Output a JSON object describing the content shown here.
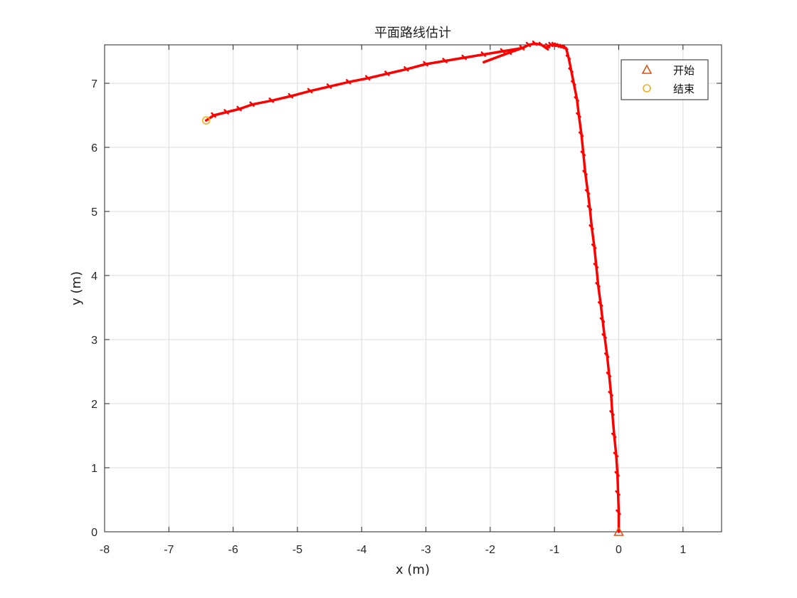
{
  "chart_data": {
    "type": "line",
    "title": "平面路线估计",
    "xlabel": "x (m)",
    "ylabel": "y (m)",
    "xlim": [
      -8,
      1.6
    ],
    "ylim": [
      0,
      7.6
    ],
    "xticks": [
      -8,
      -7,
      -6,
      -5,
      -4,
      -3,
      -2,
      -1,
      0,
      1
    ],
    "xtick_labels": [
      "-8",
      "-7",
      "-6",
      "-5",
      "-4",
      "-3",
      "-2",
      "-1",
      "0",
      "1"
    ],
    "yticks": [
      0,
      1,
      2,
      3,
      4,
      5,
      6,
      7
    ],
    "ytick_labels": [
      "0",
      "1",
      "2",
      "3",
      "4",
      "5",
      "6",
      "7"
    ],
    "grid": true,
    "legend": {
      "placement": "top-right",
      "entries": [
        {
          "label": "开始",
          "marker": "triangle",
          "color": "#D95319"
        },
        {
          "label": "结束",
          "marker": "circle",
          "color": "#EDB120"
        }
      ]
    },
    "series": [
      {
        "color": "#FF0000",
        "x": [
          0.0,
          0.0,
          -0.01,
          -0.02,
          -0.04,
          -0.07,
          -0.1,
          -0.12,
          -0.15,
          -0.18,
          -0.22,
          -0.25,
          -0.28,
          -0.32,
          -0.35,
          -0.38,
          -0.42,
          -0.45,
          -0.48,
          -0.52,
          -0.55,
          -0.58,
          -0.62,
          -0.65,
          -0.7,
          -0.74,
          -0.78,
          -0.82,
          -0.85,
          -0.88,
          -0.92,
          -0.96,
          -1.0,
          -1.05,
          -1.1,
          -1.12,
          -1.13,
          -1.2,
          -1.3,
          -1.4,
          -1.5,
          -1.7,
          -2.1
        ],
        "y": [
          0.0,
          0.3,
          0.6,
          0.9,
          1.2,
          1.5,
          1.85,
          2.15,
          2.45,
          2.75,
          3.05,
          3.3,
          3.55,
          3.85,
          4.15,
          4.45,
          4.75,
          5.05,
          5.3,
          5.6,
          5.9,
          6.2,
          6.5,
          6.75,
          7.0,
          7.2,
          7.4,
          7.55,
          7.56,
          7.57,
          7.58,
          7.59,
          7.6,
          7.6,
          7.58,
          7.55,
          7.55,
          7.6,
          7.62,
          7.6,
          7.55,
          7.48,
          7.33
        ]
      },
      {
        "color": "#FF0000",
        "x": [
          -1.5,
          -1.8,
          -2.1,
          -2.4,
          -2.7,
          -3.0,
          -3.3,
          -3.6,
          -3.9,
          -4.2,
          -4.5,
          -4.8,
          -5.1,
          -5.4,
          -5.7,
          -5.9,
          -6.1,
          -6.3,
          -6.42
        ],
        "y": [
          7.55,
          7.5,
          7.45,
          7.4,
          7.35,
          7.3,
          7.22,
          7.15,
          7.08,
          7.02,
          6.95,
          6.88,
          6.8,
          6.73,
          6.67,
          6.6,
          6.55,
          6.5,
          6.42
        ]
      }
    ],
    "markers": [
      {
        "name": "开始",
        "x": 0.0,
        "y": 0.0
      },
      {
        "name": "结束",
        "x": -6.42,
        "y": 6.42
      }
    ]
  }
}
